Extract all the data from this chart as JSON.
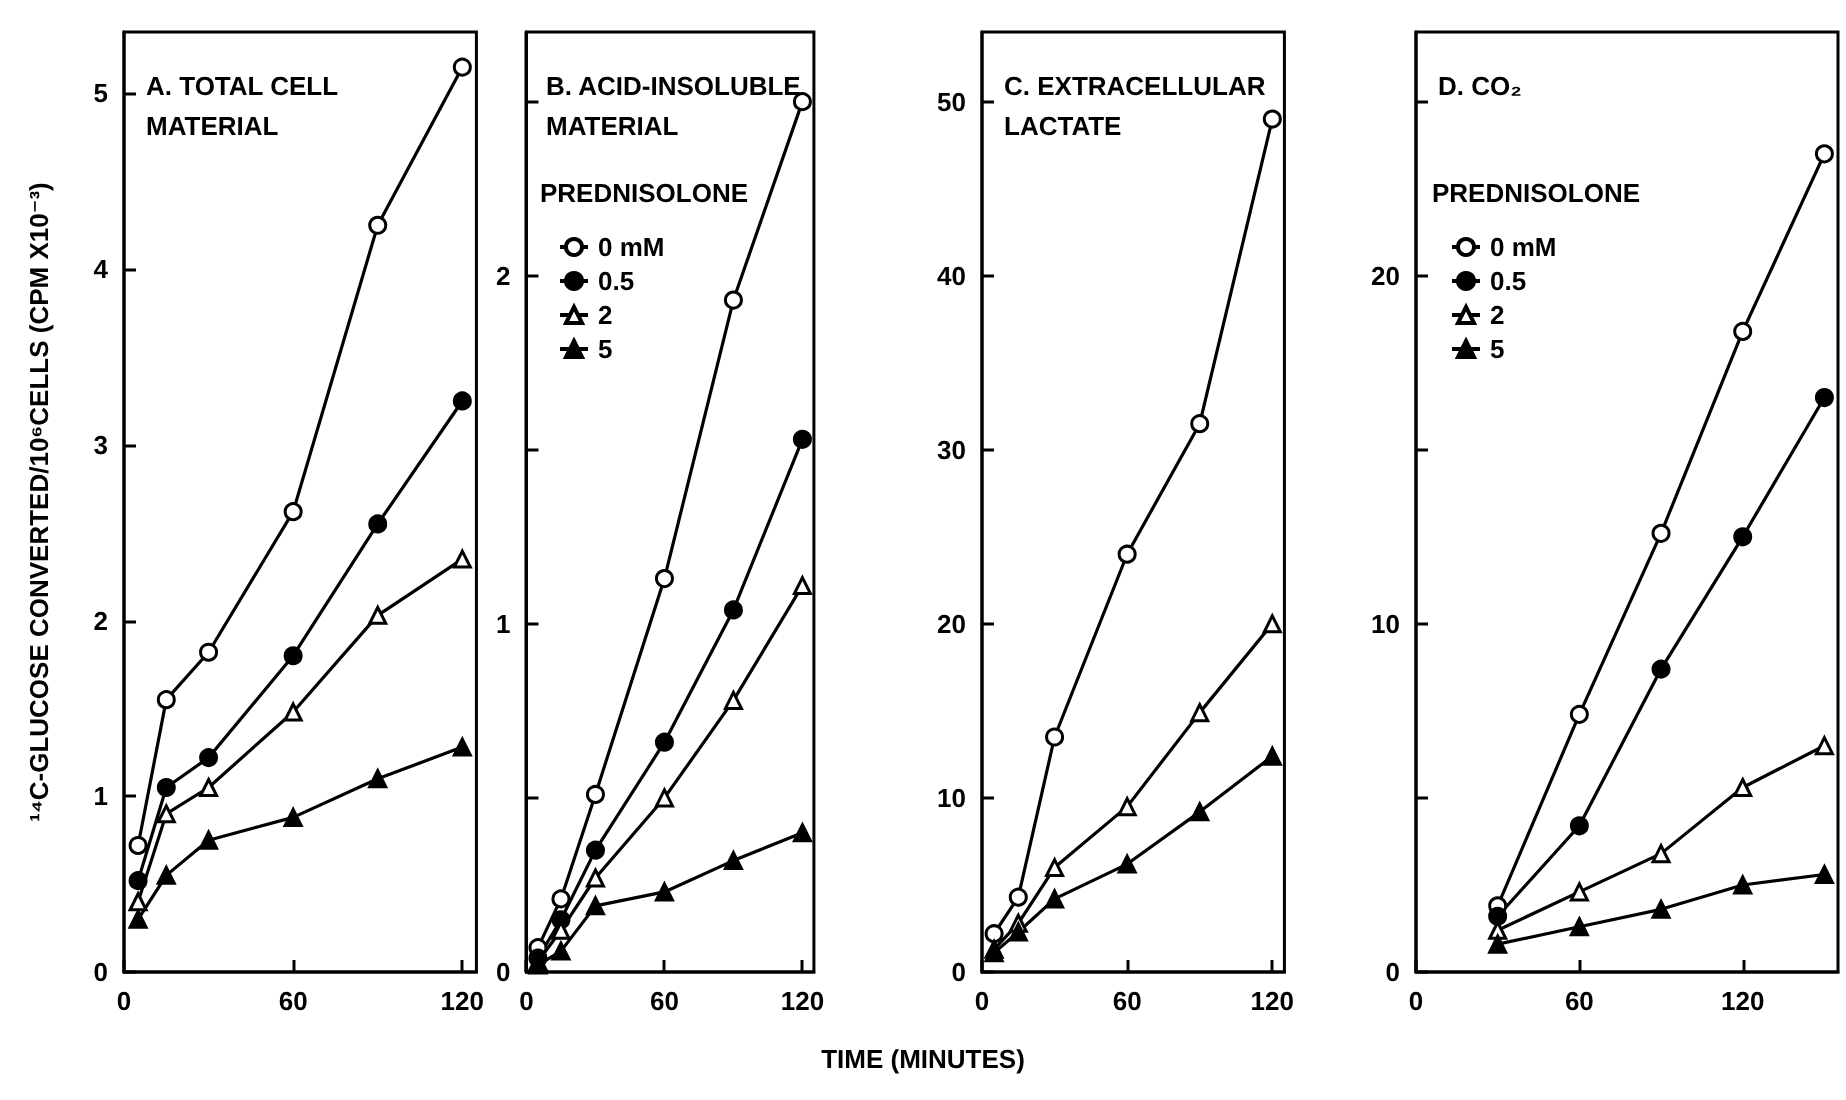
{
  "chart_data": [
    {
      "type": "line",
      "title": "A. TOTAL CELL MATERIAL",
      "ylabel": "¹⁴C-GLUCOSE CONVERTED/10⁶CELLS (CPM X10⁻³)",
      "x": [
        5,
        15,
        30,
        60,
        90,
        120
      ],
      "xlim": [
        0,
        125
      ],
      "xticks": [
        0,
        60,
        120
      ],
      "ylim": [
        0,
        5.35
      ],
      "yticks": [
        0,
        1,
        2,
        3,
        4,
        5
      ],
      "line_style": "solid",
      "series": [
        {
          "color": "#ffffff",
          "marker": "circle",
          "values": [
            0.72,
            1.55,
            1.82,
            2.62,
            4.25,
            5.15
          ]
        },
        {
          "color": "#000000",
          "marker": "circle",
          "values": [
            0.52,
            1.05,
            1.22,
            1.8,
            2.55,
            3.25
          ]
        },
        {
          "color": "#ffffff",
          "marker": "triangle",
          "values": [
            0.4,
            0.9,
            1.05,
            1.48,
            2.03,
            2.35
          ]
        },
        {
          "color": "#000000",
          "marker": "triangle",
          "values": [
            0.3,
            0.55,
            0.75,
            0.88,
            1.1,
            1.28
          ]
        }
      ]
    },
    {
      "type": "line",
      "title": "B. ACID-INSOLUBLE MATERIAL",
      "legend_title": "PREDNISOLONE",
      "legend": "top left",
      "xlabel": "TIME (MINUTES)",
      "x": [
        5,
        15,
        30,
        60,
        90,
        120
      ],
      "xlim": [
        0,
        125
      ],
      "xticks": [
        0,
        60,
        120
      ],
      "ylim": [
        0,
        2.7
      ],
      "yticks": [
        0,
        {
          "value": 0.5,
          "label": null
        },
        1,
        {
          "value": 1.5,
          "label": null
        },
        2,
        {
          "value": 2.5,
          "label": null
        }
      ],
      "line_style": "solid",
      "series": [
        {
          "name": "0 mM",
          "color": "#ffffff",
          "marker": "circle",
          "values": [
            0.07,
            0.21,
            0.51,
            1.13,
            1.93,
            2.5
          ]
        },
        {
          "name": "0.5",
          "color": "#000000",
          "marker": "circle",
          "values": [
            0.04,
            0.15,
            0.35,
            0.66,
            1.04,
            1.53
          ]
        },
        {
          "name": "2",
          "color": "#ffffff",
          "marker": "triangle",
          "values": [
            0.03,
            0.12,
            0.27,
            0.5,
            0.78,
            1.11
          ]
        },
        {
          "name": "5",
          "color": "#000000",
          "marker": "triangle",
          "values": [
            0.02,
            0.06,
            0.19,
            0.23,
            0.32,
            0.4
          ]
        }
      ]
    },
    {
      "type": "line",
      "title": "C. EXTRACELLULAR LACTATE",
      "x": [
        5,
        15,
        30,
        60,
        90,
        120
      ],
      "xlim": [
        0,
        125
      ],
      "xticks": [
        0,
        60,
        120
      ],
      "ylim": [
        0,
        54
      ],
      "yticks": [
        0,
        10,
        20,
        30,
        40,
        50
      ],
      "line_style": "solid",
      "series": [
        {
          "color": "#ffffff",
          "marker": "circle",
          "values": [
            2.2,
            4.3,
            13.5,
            24,
            31.5,
            49
          ]
        },
        {
          "color": "#ffffff",
          "marker": "triangle",
          "values": [
            1.3,
            2.8,
            6,
            9.5,
            14.9,
            20
          ]
        },
        {
          "color": "#000000",
          "marker": "triangle",
          "values": [
            1.1,
            2.3,
            4.2,
            6.2,
            9.2,
            12.4
          ]
        }
      ]
    },
    {
      "type": "line",
      "title": "D. CO₂",
      "legend_title": "PREDNISOLONE",
      "legend": "top left",
      "x": [
        30,
        60,
        90,
        120,
        150
      ],
      "xlim": [
        0,
        155
      ],
      "xticks": [
        0,
        60,
        120
      ],
      "ylim": [
        0,
        27
      ],
      "yticks": [
        0,
        {
          "value": 5,
          "label": null
        },
        10,
        {
          "value": 15,
          "label": null
        },
        20,
        {
          "value": 25,
          "label": null
        }
      ],
      "line_style": "solid",
      "series": [
        {
          "name": "0 mM",
          "color": "#ffffff",
          "marker": "circle",
          "values": [
            1.9,
            7.4,
            12.6,
            18.4,
            23.5
          ]
        },
        {
          "name": "0.5",
          "color": "#000000",
          "marker": "circle",
          "values": [
            1.6,
            4.2,
            8.7,
            12.5,
            16.5
          ]
        },
        {
          "name": "2",
          "color": "#ffffff",
          "marker": "triangle",
          "values": [
            1.2,
            2.3,
            3.4,
            5.3,
            6.5
          ]
        },
        {
          "name": "5",
          "color": "#000000",
          "marker": "triangle",
          "values": [
            0.8,
            1.3,
            1.8,
            2.5,
            2.8
          ]
        }
      ]
    }
  ]
}
